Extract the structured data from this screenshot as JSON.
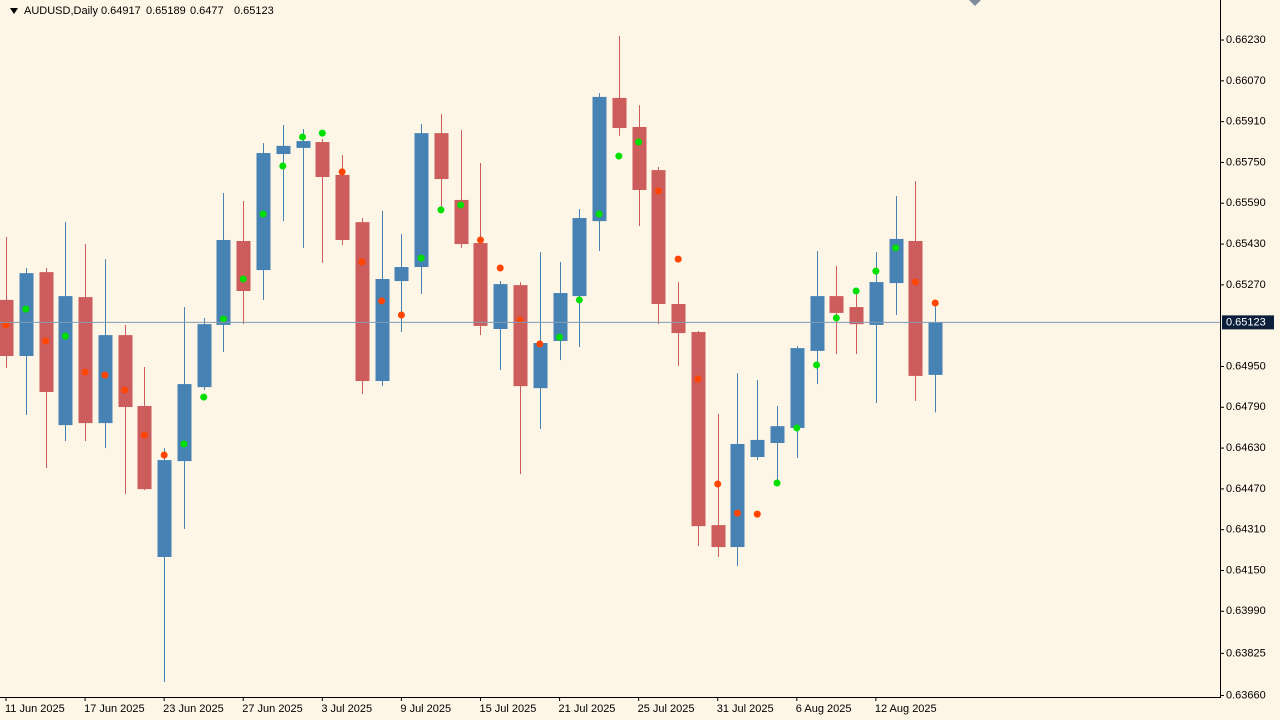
{
  "chart_data": {
    "type": "candlestick",
    "title": "AUDUSD,Daily",
    "categories": [
      "11 Jun 2025",
      null,
      null,
      null,
      "17 Jun 2025",
      null,
      null,
      null,
      "23 Jun 2025",
      null,
      null,
      null,
      "27 Jun 2025",
      null,
      null,
      null,
      "3 Jul 2025",
      null,
      null,
      null,
      "9 Jul 2025",
      null,
      null,
      null,
      "15 Jul 2025",
      null,
      null,
      null,
      "21 Jul 2025",
      null,
      null,
      null,
      "25 Jul 2025",
      null,
      null,
      null,
      "31 Jul 2025",
      null,
      null,
      null,
      "6 Aug 2025",
      null,
      null,
      null,
      "12 Aug 2025",
      null,
      null,
      null
    ],
    "open": [
      0.65211,
      0.64991,
      0.6532,
      0.6472,
      0.65222,
      0.64728,
      0.65073,
      0.64795,
      0.64203,
      0.64579,
      0.64869,
      0.65113,
      0.65442,
      0.65328,
      0.65783,
      0.65807,
      0.6583,
      0.65701,
      0.65516,
      0.64893,
      0.65285,
      0.6534,
      0.65865,
      0.65603,
      0.65434,
      0.65097,
      0.65269,
      0.64865,
      0.6505,
      0.65226,
      0.6552,
      0.66003,
      0.65889,
      0.6572,
      0.65195,
      0.65085,
      0.64328,
      0.64242,
      0.64595,
      0.6465,
      0.64709,
      0.65011,
      0.65226,
      0.65183,
      0.65113,
      0.65277,
      0.65442,
      0.64917
    ],
    "high": [
      0.65458,
      0.65336,
      0.65336,
      0.65516,
      0.6543,
      0.65371,
      0.65113,
      0.64948,
      0.6463,
      0.65183,
      0.6514,
      0.6563,
      0.65599,
      0.65826,
      0.65897,
      0.65881,
      0.65842,
      0.65779,
      0.65532,
      0.6556,
      0.65469,
      0.65901,
      0.6594,
      0.65877,
      0.65748,
      0.65285,
      0.65281,
      0.65399,
      0.6536,
      0.65567,
      0.66022,
      0.66246,
      0.65975,
      0.65732,
      0.65281,
      0.65089,
      0.64764,
      0.64924,
      0.64897,
      0.64795,
      0.6503,
      0.65403,
      0.65344,
      0.6525,
      0.65399,
      0.65618,
      0.65677,
      0.65189
    ],
    "low": [
      0.64944,
      0.6476,
      0.64552,
      0.64658,
      0.64658,
      0.6463,
      0.6445,
      0.64465,
      0.63713,
      0.64313,
      0.64858,
      0.65007,
      0.65116,
      0.65211,
      0.6552,
      0.65415,
      0.65356,
      0.65426,
      0.64842,
      0.64873,
      0.65085,
      0.65234,
      0.65567,
      0.65415,
      0.65073,
      0.64936,
      0.64528,
      0.64705,
      0.64975,
      0.65026,
      0.65403,
      0.65854,
      0.65501,
      0.65116,
      0.64952,
      0.64246,
      0.64203,
      0.64167,
      0.64583,
      0.64505,
      0.64591,
      0.64881,
      0.64999,
      0.64999,
      0.64807,
      0.65152,
      0.64815,
      0.6477
    ],
    "close": [
      0.64991,
      0.65316,
      0.6485,
      0.65226,
      0.64728,
      0.65073,
      0.64791,
      0.64469,
      0.64583,
      0.64881,
      0.65116,
      0.65446,
      0.65246,
      0.65787,
      0.65815,
      0.65834,
      0.65693,
      0.65446,
      0.64893,
      0.65293,
      0.6534,
      0.65865,
      0.65685,
      0.6543,
      0.65109,
      0.65273,
      0.64873,
      0.65042,
      0.65238,
      0.65532,
      0.66007,
      0.65885,
      0.65642,
      0.65195,
      0.65081,
      0.64324,
      0.64242,
      0.64646,
      0.64662,
      0.64716,
      0.65022,
      0.65226,
      0.6516,
      0.65116,
      0.65281,
      0.6545,
      0.64913,
      0.65123
    ],
    "signals": [
      0.65113,
      0.65175,
      0.6505,
      0.65069,
      0.64928,
      0.64916,
      0.64858,
      0.64681,
      0.64603,
      0.64646,
      0.6483,
      0.65136,
      0.65293,
      0.65548,
      0.65736,
      0.6585,
      0.65865,
      0.65713,
      0.6536,
      0.65207,
      0.65152,
      0.65375,
      0.65564,
      0.65583,
      0.65446,
      0.65336,
      0.65132,
      0.65038,
      0.65065,
      0.65211,
      0.65548,
      0.65775,
      0.6583,
      0.65638,
      0.65371,
      0.64901,
      0.64489,
      0.64375,
      0.64371,
      0.64493,
      0.64709,
      0.64956,
      0.6514,
      0.65246,
      0.65324,
      0.65415,
      0.65281,
      0.65199
    ],
    "signal_colors": [
      "#ff4500",
      "#00e000",
      "#ff4500",
      "#00e000",
      "#ff4500",
      "#ff4500",
      "#ff4500",
      "#ff4500",
      "#ff4500",
      "#00e000",
      "#00e000",
      "#00e000",
      "#00e000",
      "#00e000",
      "#00e000",
      "#00e000",
      "#00e000",
      "#ff4500",
      "#ff4500",
      "#ff4500",
      "#ff4500",
      "#00e000",
      "#00e000",
      "#00e000",
      "#ff4500",
      "#ff4500",
      "#ff4500",
      "#ff4500",
      "#00e000",
      "#00e000",
      "#00e000",
      "#00e000",
      "#00e000",
      "#ff4500",
      "#ff4500",
      "#ff4500",
      "#ff4500",
      "#ff4500",
      "#ff4500",
      "#00e000",
      "#00e000",
      "#00e000",
      "#00e000",
      "#00e000",
      "#00e000",
      "#00e000",
      "#ff4500",
      "#ff4500"
    ],
    "up_color": "#4682b4",
    "down_color": "#cd5c5c",
    "price_line_color": "#7f9bb5",
    "ylim": [
      0.63654,
      0.66387
    ],
    "yticks": [
      {
        "value": 0.6623,
        "label": "0.66230"
      },
      {
        "value": 0.6607,
        "label": "0.66070"
      },
      {
        "value": 0.6591,
        "label": "0.65910"
      },
      {
        "value": 0.6575,
        "label": "0.65750"
      },
      {
        "value": 0.6559,
        "label": "0.65590"
      },
      {
        "value": 0.6543,
        "label": "0.65430"
      },
      {
        "value": 0.6527,
        "label": "0.65270"
      },
      {
        "value": 0.6495,
        "label": "0.64950"
      },
      {
        "value": 0.6479,
        "label": "0.64790"
      },
      {
        "value": 0.6463,
        "label": "0.64630"
      },
      {
        "value": 0.6447,
        "label": "0.64470"
      },
      {
        "value": 0.6431,
        "label": "0.64310"
      },
      {
        "value": 0.6415,
        "label": "0.64150"
      },
      {
        "value": 0.6399,
        "label": "0.63990"
      },
      0.63825,
      {
        "value": 0.6366,
        "label": "0.63660"
      }
    ]
  }
}
